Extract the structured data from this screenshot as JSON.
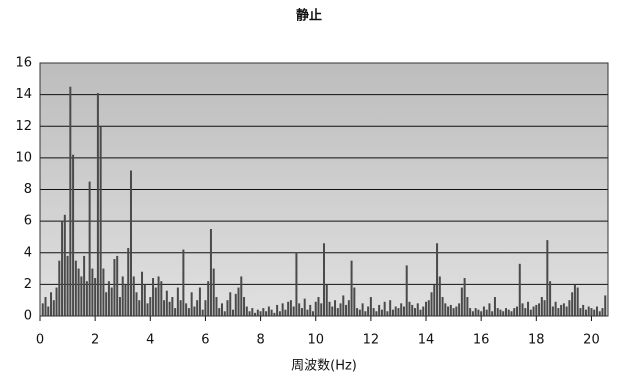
{
  "chart_data": {
    "type": "bar",
    "title": "静止",
    "x_label": "周波数(Hz)",
    "color": "#4a4a4a",
    "grid": true,
    "xlim": [
      0,
      20.6
    ],
    "ylim": [
      0,
      16
    ],
    "xticks": [
      0,
      2,
      4,
      6,
      8,
      10,
      12,
      14,
      16,
      18,
      20
    ],
    "yticks": [
      0,
      2,
      4,
      6,
      8,
      10,
      12,
      14,
      16
    ],
    "x": [
      0.1,
      0.2,
      0.3,
      0.4,
      0.5,
      0.6,
      0.7,
      0.8,
      0.9,
      1.0,
      1.1,
      1.2,
      1.3,
      1.4,
      1.5,
      1.6,
      1.7,
      1.8,
      1.9,
      2.0,
      2.1,
      2.2,
      2.3,
      2.4,
      2.5,
      2.6,
      2.7,
      2.8,
      2.9,
      3.0,
      3.1,
      3.2,
      3.3,
      3.4,
      3.5,
      3.6,
      3.7,
      3.8,
      3.9,
      4.0,
      4.1,
      4.2,
      4.3,
      4.4,
      4.5,
      4.6,
      4.7,
      4.8,
      4.9,
      5.0,
      5.1,
      5.2,
      5.3,
      5.4,
      5.5,
      5.6,
      5.7,
      5.8,
      5.9,
      6.0,
      6.1,
      6.2,
      6.3,
      6.4,
      6.5,
      6.6,
      6.7,
      6.8,
      6.9,
      7.0,
      7.1,
      7.2,
      7.3,
      7.4,
      7.5,
      7.6,
      7.7,
      7.8,
      7.9,
      8.0,
      8.1,
      8.2,
      8.3,
      8.4,
      8.5,
      8.6,
      8.7,
      8.8,
      8.9,
      9.0,
      9.1,
      9.2,
      9.3,
      9.4,
      9.5,
      9.6,
      9.7,
      9.8,
      9.9,
      10.0,
      10.1,
      10.2,
      10.3,
      10.4,
      10.5,
      10.6,
      10.7,
      10.8,
      10.9,
      11.0,
      11.1,
      11.2,
      11.3,
      11.4,
      11.5,
      11.6,
      11.7,
      11.8,
      11.9,
      12.0,
      12.1,
      12.2,
      12.3,
      12.4,
      12.5,
      12.6,
      12.7,
      12.8,
      12.9,
      13.0,
      13.1,
      13.2,
      13.3,
      13.4,
      13.5,
      13.6,
      13.7,
      13.8,
      13.9,
      14.0,
      14.1,
      14.2,
      14.3,
      14.4,
      14.5,
      14.6,
      14.7,
      14.8,
      14.9,
      15.0,
      15.1,
      15.2,
      15.3,
      15.4,
      15.5,
      15.6,
      15.7,
      15.8,
      15.9,
      16.0,
      16.1,
      16.2,
      16.3,
      16.4,
      16.5,
      16.6,
      16.7,
      16.8,
      16.9,
      17.0,
      17.1,
      17.2,
      17.3,
      17.4,
      17.5,
      17.6,
      17.7,
      17.8,
      17.9,
      18.0,
      18.1,
      18.2,
      18.3,
      18.4,
      18.5,
      18.6,
      18.7,
      18.8,
      18.9,
      19.0,
      19.1,
      19.2,
      19.3,
      19.4,
      19.5,
      19.6,
      19.7,
      19.8,
      19.9,
      20.0,
      20.1,
      20.2,
      20.3,
      20.4,
      20.5
    ],
    "values": [
      0.8,
      1.2,
      0.6,
      1.5,
      1.0,
      1.8,
      3.5,
      6.0,
      6.4,
      3.8,
      14.5,
      10.2,
      3.5,
      3.0,
      2.5,
      3.8,
      2.2,
      8.5,
      3.0,
      2.4,
      14.1,
      12.0,
      3.0,
      1.5,
      2.2,
      1.8,
      3.6,
      3.8,
      1.2,
      2.5,
      2.0,
      4.3,
      9.2,
      2.5,
      1.5,
      1.0,
      2.8,
      2.0,
      0.8,
      1.2,
      2.4,
      1.8,
      2.5,
      2.2,
      1.0,
      1.6,
      0.9,
      1.2,
      0.5,
      1.8,
      1.0,
      4.2,
      0.8,
      0.5,
      1.5,
      0.6,
      1.0,
      1.8,
      0.4,
      1.0,
      2.2,
      5.5,
      3.0,
      1.2,
      0.5,
      0.8,
      0.3,
      1.0,
      1.5,
      0.4,
      1.4,
      1.8,
      2.5,
      1.2,
      0.6,
      0.3,
      0.5,
      0.2,
      0.4,
      0.3,
      0.5,
      0.3,
      0.6,
      0.4,
      0.2,
      0.7,
      0.3,
      0.8,
      0.4,
      0.9,
      1.0,
      0.6,
      4.0,
      0.8,
      0.5,
      1.1,
      0.4,
      0.7,
      0.3,
      0.9,
      1.2,
      0.8,
      4.6,
      2.0,
      0.9,
      0.6,
      1.0,
      0.5,
      0.8,
      1.3,
      0.7,
      1.0,
      3.5,
      1.8,
      0.5,
      0.4,
      0.8,
      0.3,
      0.6,
      1.2,
      0.5,
      0.3,
      0.7,
      0.4,
      0.9,
      0.3,
      1.0,
      0.4,
      0.6,
      0.5,
      0.8,
      0.6,
      3.2,
      0.9,
      0.7,
      0.5,
      0.8,
      0.4,
      0.6,
      0.9,
      1.0,
      1.5,
      2.0,
      4.6,
      2.5,
      1.2,
      0.8,
      0.6,
      0.7,
      0.5,
      0.6,
      0.8,
      1.8,
      2.4,
      1.2,
      0.5,
      0.3,
      0.5,
      0.4,
      0.3,
      0.6,
      0.4,
      0.8,
      0.3,
      1.2,
      0.5,
      0.4,
      0.3,
      0.5,
      0.4,
      0.3,
      0.5,
      0.6,
      3.3,
      0.8,
      0.5,
      0.9,
      0.4,
      0.6,
      0.7,
      0.8,
      1.2,
      1.0,
      4.8,
      2.2,
      0.6,
      0.9,
      0.5,
      0.7,
      0.8,
      0.6,
      1.0,
      1.5,
      2.0,
      1.8,
      0.5,
      0.7,
      0.4,
      0.6,
      0.5,
      0.4,
      0.6,
      0.3,
      0.5,
      1.3
    ]
  }
}
